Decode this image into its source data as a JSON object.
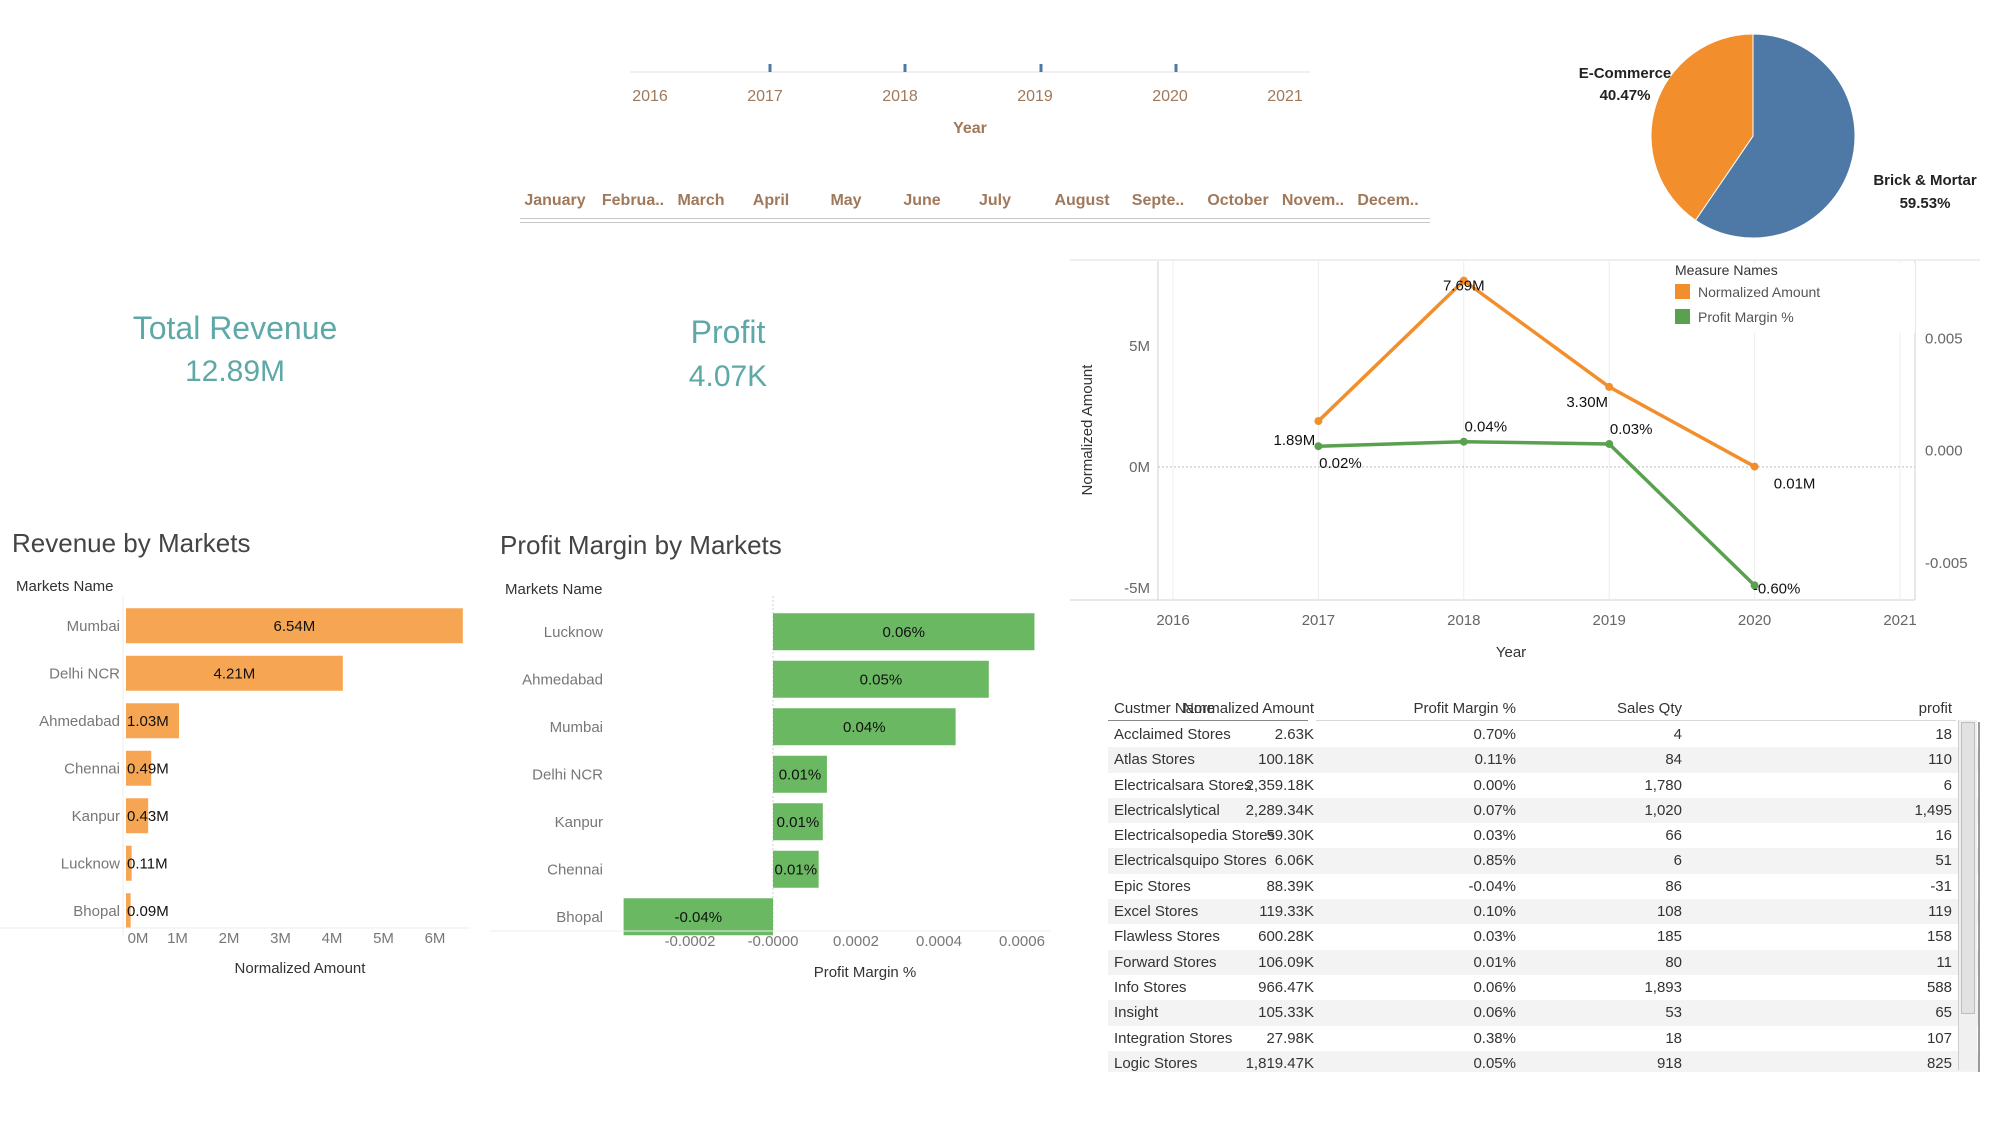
{
  "filters": {
    "year_label": "Year",
    "years": [
      "2016",
      "2017",
      "2018",
      "2019",
      "2020",
      "2021"
    ],
    "months": [
      "January",
      "Februa..",
      "March",
      "April",
      "May",
      "June",
      "July",
      "August",
      "Septe..",
      "October",
      "Novem..",
      "Decem.."
    ]
  },
  "kpis": {
    "revenue_title": "Total Revenue",
    "revenue_value": "12.89M",
    "profit_title": "Profit",
    "profit_value": "4.07K"
  },
  "colors": {
    "orange": "#f28e2b",
    "orange_light": "#f6a653",
    "green": "#59a14f",
    "green_light": "#6bb862",
    "blue": "#4e79a7",
    "teal": "#5fa8a8"
  },
  "chart_data": [
    {
      "type": "pie",
      "slices": [
        {
          "label": "E-Commerce",
          "value_label": "40.47%",
          "value": 40.47,
          "color": "#f28e2b"
        },
        {
          "label": "Brick & Mortar",
          "value_label": "59.53%",
          "value": 59.53,
          "color": "#4e79a7"
        }
      ]
    },
    {
      "type": "line",
      "x": [
        2017,
        2018,
        2019,
        2020
      ],
      "x_ticks": [
        "2016",
        "2017",
        "2018",
        "2019",
        "2020",
        "2021"
      ],
      "xlabel": "Year",
      "ylabel": "Normalized Amount",
      "y_ticks": [
        "5M",
        "0M",
        "-5M"
      ],
      "y2_ticks": [
        "0.005",
        "0.000",
        "-0.005"
      ],
      "legend_title": "Measure Names",
      "legend_position": "top-right",
      "series": [
        {
          "name": "Normalized Amount",
          "axis": "left",
          "values": [
            1.89,
            7.69,
            3.3,
            0.01
          ],
          "labels": [
            "1.89M",
            "7.69M",
            "3.30M",
            "0.01M"
          ],
          "color": "#f28e2b"
        },
        {
          "name": "Profit Margin %",
          "axis": "right",
          "values": [
            0.0002,
            0.0004,
            0.0003,
            -0.006
          ],
          "labels": [
            "0.02%",
            "0.04%",
            "0.03%",
            "-0.60%"
          ],
          "color": "#59a14f"
        }
      ]
    },
    {
      "type": "bar",
      "title": "Revenue by Markets",
      "category_header": "Markets Name",
      "xlabel": "Normalized Amount",
      "x_ticks": [
        "0M",
        "1M",
        "2M",
        "3M",
        "4M",
        "5M",
        "6M"
      ],
      "categories": [
        "Mumbai",
        "Delhi NCR",
        "Ahmedabad",
        "Chennai",
        "Kanpur",
        "Lucknow",
        "Bhopal"
      ],
      "values": [
        6.54,
        4.21,
        1.03,
        0.49,
        0.43,
        0.11,
        0.09
      ],
      "labels": [
        "6.54M",
        "4.21M",
        "1.03M",
        "0.49M",
        "0.43M",
        "0.11M",
        "0.09M"
      ]
    },
    {
      "type": "bar",
      "title": "Profit Margin by Markets",
      "category_header": "Markets Name",
      "xlabel": "Profit Margin %",
      "x_ticks": [
        "-0.0002",
        "-0.0000",
        "0.0002",
        "0.0004",
        "0.0006"
      ],
      "categories": [
        "Lucknow",
        "Ahmedabad",
        "Mumbai",
        "Delhi NCR",
        "Kanpur",
        "Chennai",
        "Bhopal"
      ],
      "values": [
        0.00063,
        0.00052,
        0.00044,
        0.00013,
        0.00012,
        0.00011,
        -0.00036
      ],
      "labels": [
        "0.06%",
        "0.05%",
        "0.04%",
        "0.01%",
        "0.01%",
        "0.01%",
        "-0.04%"
      ]
    }
  ],
  "table": {
    "headers": [
      "Custmer Name",
      "Normalized Amount",
      "Profit Margin %",
      "Sales Qty",
      "profit"
    ],
    "rows": [
      [
        "Acclaimed Stores",
        "2.63K",
        "0.70%",
        "4",
        "18"
      ],
      [
        "Atlas Stores",
        "100.18K",
        "0.11%",
        "84",
        "110"
      ],
      [
        "Electricalsara Stores",
        "2,359.18K",
        "0.00%",
        "1,780",
        "6"
      ],
      [
        "Electricalslytical",
        "2,289.34K",
        "0.07%",
        "1,020",
        "1,495"
      ],
      [
        "Electricalsopedia Stores",
        "59.30K",
        "0.03%",
        "66",
        "16"
      ],
      [
        "Electricalsquipo Stores",
        "6.06K",
        "0.85%",
        "6",
        "51"
      ],
      [
        "Epic Stores",
        "88.39K",
        "-0.04%",
        "86",
        "-31"
      ],
      [
        "Excel Stores",
        "119.33K",
        "0.10%",
        "108",
        "119"
      ],
      [
        "Flawless Stores",
        "600.28K",
        "0.03%",
        "185",
        "158"
      ],
      [
        "Forward Stores",
        "106.09K",
        "0.01%",
        "80",
        "11"
      ],
      [
        "Info Stores",
        "966.47K",
        "0.06%",
        "1,893",
        "588"
      ],
      [
        "Insight",
        "105.33K",
        "0.06%",
        "53",
        "65"
      ],
      [
        "Integration Stores",
        "27.98K",
        "0.38%",
        "18",
        "107"
      ],
      [
        "Logic Stores",
        "1,819.47K",
        "0.05%",
        "918",
        "825"
      ]
    ]
  }
}
